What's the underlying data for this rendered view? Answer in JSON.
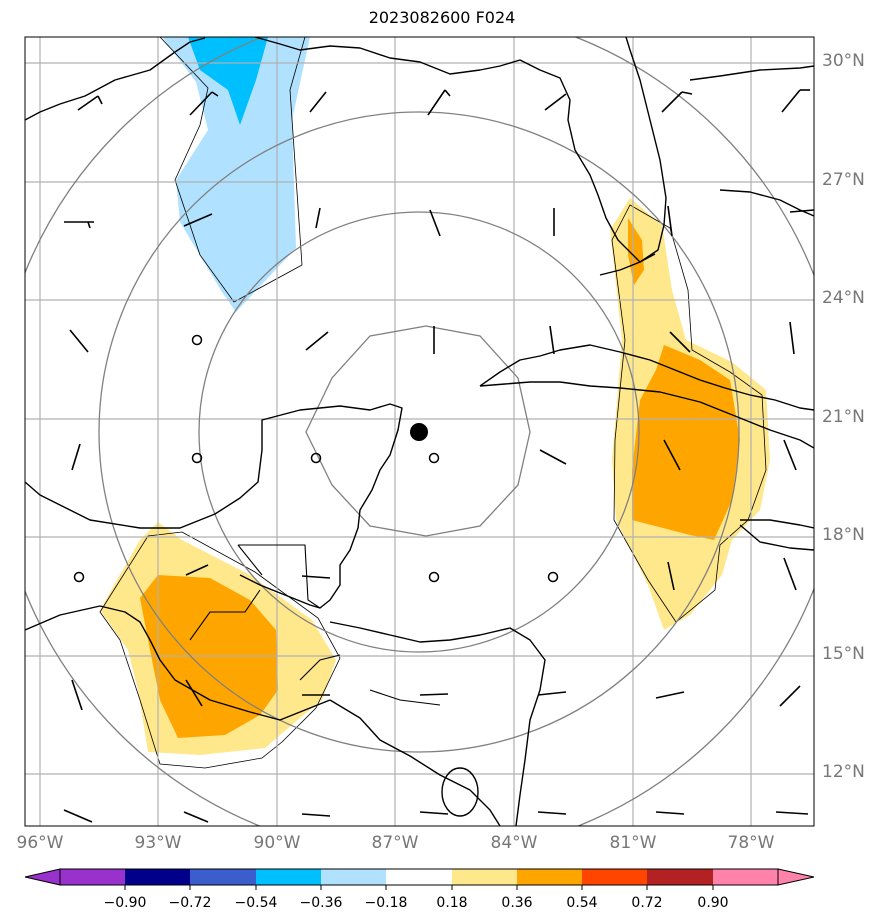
{
  "title": "2023082600 F024",
  "latitude_labels": [
    "30°N",
    "27°N",
    "24°N",
    "21°N",
    "18°N",
    "15°N",
    "12°N"
  ],
  "longitude_labels": [
    "96°W",
    "93°W",
    "90°W",
    "87°W",
    "84°W",
    "81°W",
    "78°W"
  ],
  "colorbar": {
    "tick_labels": [
      "−0.90",
      "−0.72",
      "−0.54",
      "−0.36",
      "−0.18",
      "0.18",
      "0.36",
      "0.54",
      "0.72",
      "0.90"
    ],
    "colors": [
      "#9932cc",
      "#00008b",
      "#3a5fcd",
      "#00bfff",
      "#b0e2ff",
      "#ffffff",
      "#ffe88c",
      "#ffa500",
      "#ff4500",
      "#b22222",
      "#ff82ab"
    ]
  },
  "map_colors": {
    "range_rings": "#808080",
    "gridlines": "#b0b0b0",
    "coastline": "#000000",
    "storm_center": "#000000"
  }
}
